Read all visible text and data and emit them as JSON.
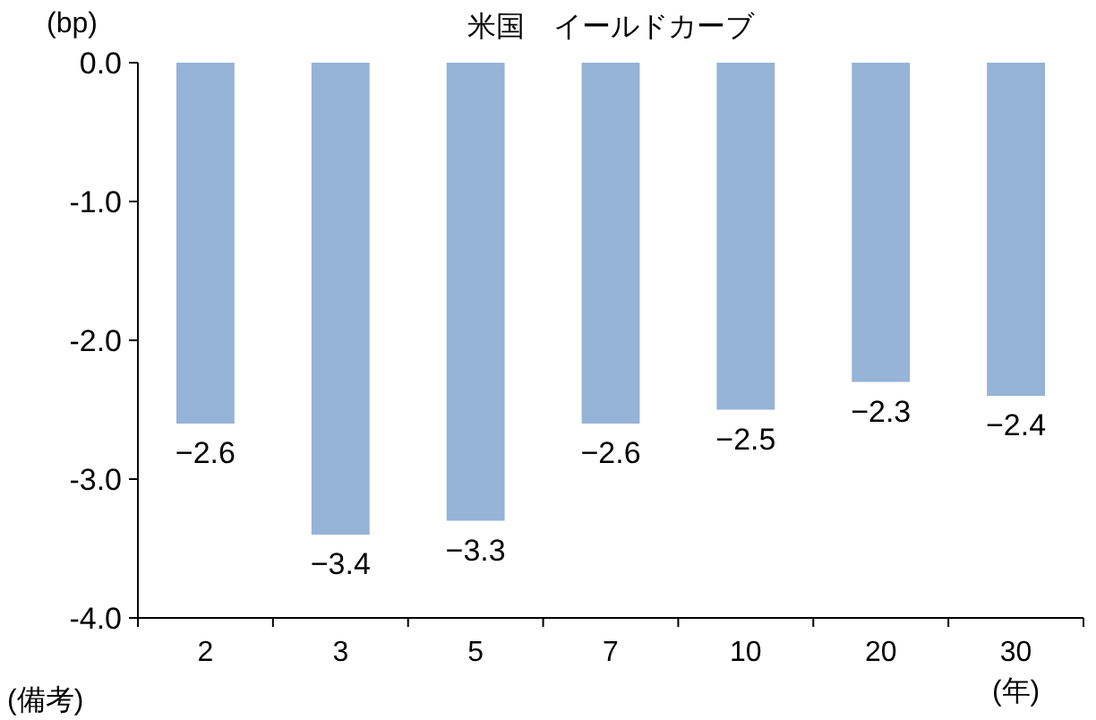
{
  "chart_data": {
    "type": "bar",
    "title": "米国　イールドカーブ",
    "ylabel": "(bp)",
    "xlabel": "(年)",
    "categories": [
      "2",
      "3",
      "5",
      "7",
      "10",
      "20",
      "30"
    ],
    "values": [
      -2.6,
      -3.4,
      -3.3,
      -2.6,
      -2.5,
      -2.3,
      -2.4
    ],
    "color": "#95b3d7",
    "data_labels": true,
    "ylim": [
      -4,
      0
    ],
    "yticks": [
      {
        "value": -4,
        "label": "-4.0"
      },
      {
        "value": -3,
        "label": "-3.0"
      },
      {
        "value": -2,
        "label": "-2.0"
      },
      {
        "value": -1,
        "label": "-1.0"
      },
      {
        "value": 0,
        "label": "0.0"
      }
    ],
    "grid": false,
    "annotations": [
      "(備考)"
    ]
  }
}
